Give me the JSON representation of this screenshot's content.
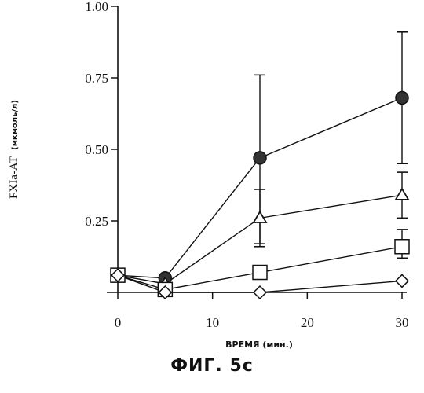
{
  "figure_label": "ФИГ. 5с",
  "chart_data": {
    "type": "line",
    "xlabel": "ВРЕМЯ (мин.)",
    "ylabel": "FXIa-AT",
    "ylabel_unit": "(мкмоль/л)",
    "xlim": [
      0,
      30
    ],
    "ylim": [
      0,
      1.0
    ],
    "x_ticks": [
      0,
      10,
      20,
      30
    ],
    "y_ticks": [
      0.25,
      0.5,
      0.75,
      1.0
    ],
    "x_tick_labels": [
      "0",
      "10",
      "20",
      "30"
    ],
    "y_tick_labels": [
      "0.25",
      "0.50",
      "0.75",
      "1.00"
    ],
    "grid": false,
    "legend": "none",
    "x": [
      0,
      5,
      15,
      30
    ],
    "series": [
      {
        "marker": "filled-circle",
        "values": [
          0.06,
          0.05,
          0.47,
          0.68
        ],
        "error_upper": [
          null,
          null,
          0.76,
          0.91
        ],
        "error_lower": [
          null,
          null,
          0.17,
          0.45
        ]
      },
      {
        "marker": "triangle",
        "values": [
          0.06,
          0.03,
          0.26,
          0.34
        ],
        "error_upper": [
          null,
          null,
          0.36,
          0.42
        ],
        "error_lower": [
          null,
          null,
          0.16,
          0.26
        ]
      },
      {
        "marker": "square",
        "values": [
          0.06,
          0.01,
          0.07,
          0.16
        ],
        "error_upper": [
          null,
          null,
          null,
          0.22
        ],
        "error_lower": [
          null,
          null,
          null,
          0.12
        ]
      },
      {
        "marker": "diamond",
        "values": [
          0.06,
          0.0,
          0.0,
          0.04
        ],
        "error_upper": [
          null,
          null,
          null,
          null
        ],
        "error_lower": [
          null,
          null,
          null,
          null
        ]
      }
    ],
    "colors": {
      "ink": "#111111",
      "background": "#ffffff"
    }
  }
}
